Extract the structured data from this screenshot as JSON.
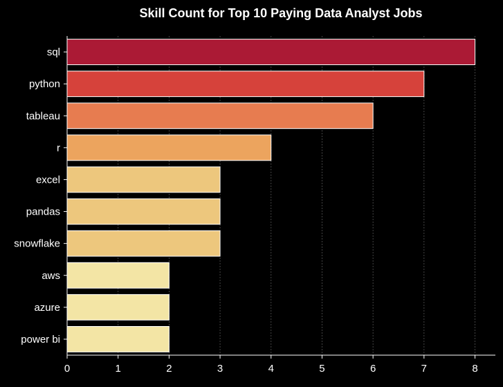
{
  "chart_data": {
    "type": "bar",
    "orientation": "horizontal",
    "title": "Skill Count for Top 10 Paying Data Analyst Jobs",
    "xlabel": "",
    "ylabel": "",
    "categories": [
      "sql",
      "python",
      "tableau",
      "r",
      "excel",
      "pandas",
      "snowflake",
      "aws",
      "azure",
      "power bi"
    ],
    "values": [
      8,
      7,
      6,
      4,
      3,
      3,
      3,
      2,
      2,
      2
    ],
    "xlim": [
      0,
      8.4
    ],
    "xticks": [
      0,
      1,
      2,
      3,
      4,
      5,
      6,
      7,
      8
    ],
    "grid": "vertical dashed",
    "colors": [
      "#ab1a35",
      "#d6423b",
      "#e77c50",
      "#eca45e",
      "#edc77d",
      "#edc77d",
      "#edc77d",
      "#f3e5a5",
      "#f3e5a5",
      "#f3e5a5"
    ],
    "background": "#000000",
    "text_color": "#ffffff",
    "bar_edge_color": "#ffffff",
    "grid_color": "#555555"
  }
}
